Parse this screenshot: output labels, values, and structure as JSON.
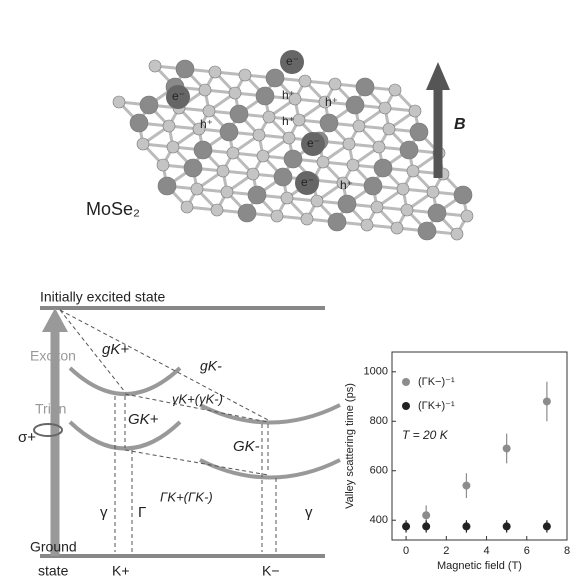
{
  "illustration": {
    "material": "MoSe₂",
    "electron": "e⁻",
    "hole": "h⁺",
    "field": "B"
  },
  "diagram": {
    "top_state": "Initially excited state",
    "exciton": "Exciton",
    "trion": "Trion",
    "polarization": "σ+",
    "g_kplus": "gK+",
    "g_kminus": "gK-",
    "gamma_k": "γK+(γK-)",
    "G_kplus": "GK+",
    "G_kminus": "GK-",
    "Gamma_k": "ΓK+(ΓK-)",
    "gamma_left": "γ",
    "Gamma_left": "Γ",
    "gamma_right": "γ",
    "ground_1": "Ground",
    "ground_2": "state",
    "valley_plus": "K+",
    "valley_minus": "K−"
  },
  "chart_data": {
    "type": "scatter",
    "annotation": "T = 20 K",
    "x_label": "Magnetic field (T)",
    "y_label": "Valley scattering time (ps)",
    "xlim": [
      -0.7,
      8
    ],
    "xticks": [
      0,
      2,
      4,
      6,
      8
    ],
    "ylim": [
      320,
      1080
    ],
    "yticks": [
      400,
      600,
      800,
      1000
    ],
    "legend": "upper left",
    "series": [
      {
        "name": "(ΓK−)⁻¹",
        "color": "#8c8c8c",
        "x": [
          1,
          3,
          5,
          7
        ],
        "values": [
          420,
          540,
          690,
          880
        ],
        "errors": [
          40,
          50,
          60,
          80
        ]
      },
      {
        "name": "(ΓK+)⁻¹",
        "color": "#222222",
        "x": [
          0,
          1,
          3,
          5,
          7
        ],
        "values": [
          375,
          375,
          375,
          375,
          375
        ],
        "errors": [
          25,
          25,
          25,
          25,
          25
        ]
      }
    ]
  }
}
